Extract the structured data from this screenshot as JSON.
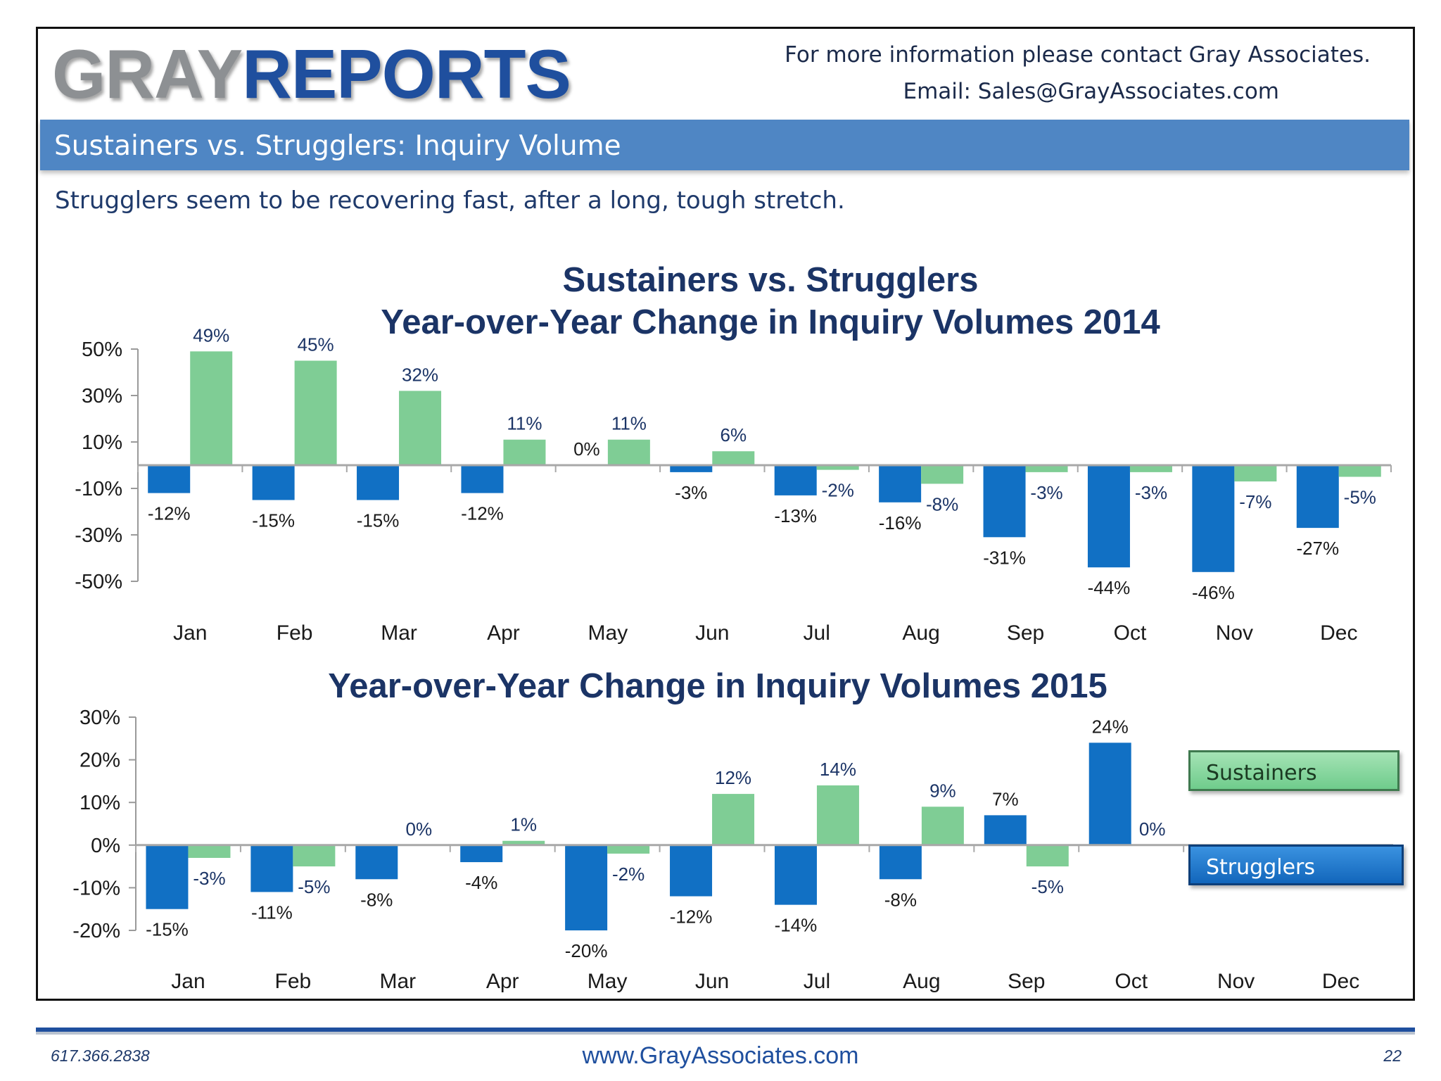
{
  "header": {
    "logo_gray": "GRAY",
    "logo_reports": "REPORTS",
    "contact_line1": "For more information please contact Gray Associates.",
    "contact_line2": "Email:  Sales@GrayAssociates.com"
  },
  "banner": {
    "title": "Sustainers vs. Strugglers:  Inquiry Volume"
  },
  "subtitle": "Strugglers seem to be recovering fast, after a long, tough stretch.",
  "legend": {
    "sustainers": "Sustainers",
    "strugglers": "Strugglers"
  },
  "colors": {
    "sustainers": "#7fcd95",
    "strugglers": "#1170c4",
    "title": "#1b3466",
    "banner": "#4f86c4"
  },
  "chart_data": [
    {
      "type": "bar",
      "title_line1": "Sustainers vs. Strugglers",
      "title_line2": "Year-over-Year Change in Inquiry Volumes 2014",
      "categories": [
        "Jan",
        "Feb",
        "Mar",
        "Apr",
        "May",
        "Jun",
        "Jul",
        "Aug",
        "Sep",
        "Oct",
        "Nov",
        "Dec"
      ],
      "series": [
        {
          "name": "Strugglers",
          "values": [
            -12,
            -15,
            -15,
            -12,
            0,
            -3,
            -13,
            -16,
            -31,
            -44,
            -46,
            -27
          ],
          "labels": [
            "-12%",
            "-15%",
            "-15%",
            "-12%",
            "0%",
            "-3%",
            "-13%",
            "-16%",
            "-31%",
            "-44%",
            "-46%",
            "-27%"
          ]
        },
        {
          "name": "Sustainers",
          "values": [
            49,
            45,
            32,
            11,
            11,
            6,
            -2,
            -8,
            -3,
            -3,
            -7,
            -5
          ],
          "labels": [
            "49%",
            "45%",
            "32%",
            "11%",
            "11%",
            "6%",
            "-2%",
            "-8%",
            "-3%",
            "-3%",
            "-7%",
            "-5%"
          ]
        }
      ],
      "yticks": [
        "50%",
        "30%",
        "10%",
        "-10%",
        "-30%",
        "-50%"
      ],
      "ytick_values": [
        50,
        30,
        10,
        -10,
        -30,
        -50
      ],
      "ylim": [
        -50,
        50
      ]
    },
    {
      "type": "bar",
      "title": "Year-over-Year Change in Inquiry Volumes 2015",
      "categories": [
        "Jan",
        "Feb",
        "Mar",
        "Apr",
        "May",
        "Jun",
        "Jul",
        "Aug",
        "Sep",
        "Oct",
        "Nov",
        "Dec"
      ],
      "series": [
        {
          "name": "Strugglers",
          "values": [
            -15,
            -11,
            -8,
            -4,
            -20,
            -12,
            -14,
            -8,
            7,
            24,
            null,
            null
          ],
          "labels": [
            "-15%",
            "-11%",
            "-8%",
            "-4%",
            "-20%",
            "-12%",
            "-14%",
            "-8%",
            "7%",
            "24%",
            null,
            null
          ]
        },
        {
          "name": "Sustainers",
          "values": [
            -3,
            -5,
            0,
            1,
            -2,
            12,
            14,
            9,
            -5,
            0,
            null,
            null
          ],
          "labels": [
            "-3%",
            "-5%",
            "0%",
            "1%",
            "-2%",
            "12%",
            "14%",
            "9%",
            "-5%",
            "0%",
            null,
            null
          ]
        }
      ],
      "yticks": [
        "30%",
        "20%",
        "10%",
        "0%",
        "-10%",
        "-20%"
      ],
      "ytick_values": [
        30,
        20,
        10,
        0,
        -10,
        -20
      ],
      "ylim": [
        -20,
        30
      ]
    }
  ],
  "footer": {
    "phone": "617.366.2838",
    "website": "www.GrayAssociates.com",
    "page": "22"
  }
}
